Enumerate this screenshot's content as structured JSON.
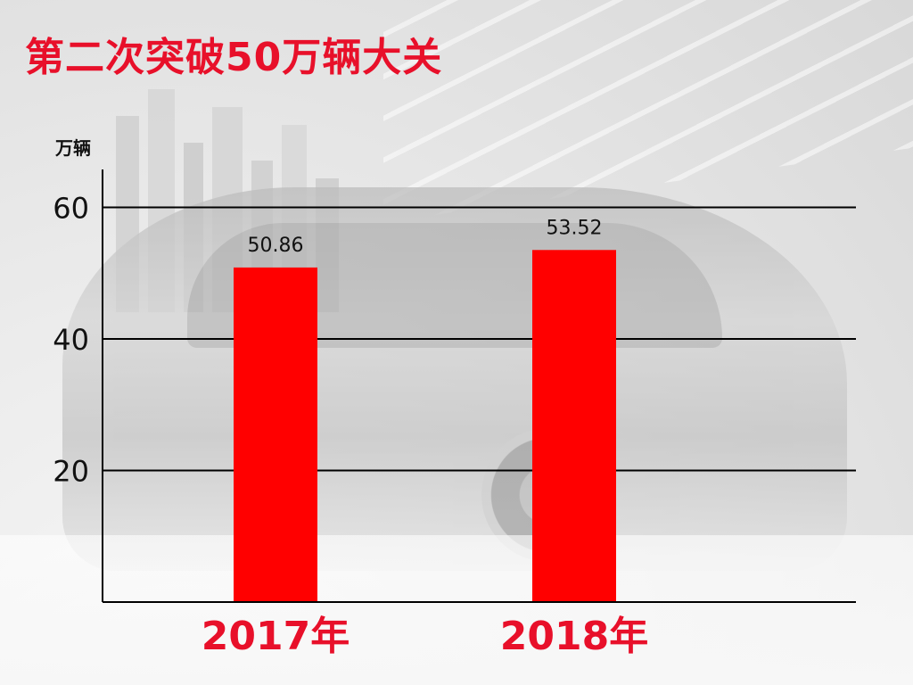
{
  "title": "第二次突破50万辆大关",
  "colors": {
    "bar": "#ff0000",
    "title": "#e8102a",
    "xlabel": "#e8102a",
    "grid": "#000000"
  },
  "chart_data": {
    "type": "bar",
    "title": "第二次突破50万辆大关",
    "unit": "万辆",
    "categories": [
      "2017年",
      "2018年"
    ],
    "values": [
      50.86,
      53.52
    ],
    "value_labels": [
      "50.86",
      "53.52"
    ],
    "yticks": [
      "20",
      "40",
      "60"
    ],
    "ylim": [
      0,
      65
    ],
    "grid": true,
    "legend": "none"
  }
}
